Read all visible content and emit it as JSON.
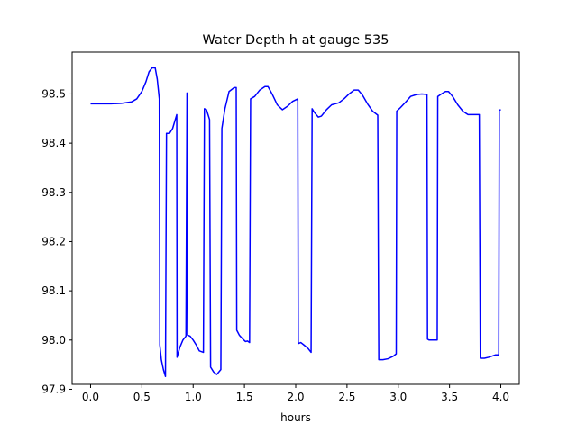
{
  "chart_data": {
    "type": "line",
    "title": "Water Depth h at gauge 535",
    "xlabel": "hours",
    "ylabel": "",
    "xlim": [
      -0.18,
      4.18
    ],
    "ylim": [
      97.91,
      98.585
    ],
    "xticks": [
      0.0,
      0.5,
      1.0,
      1.5,
      2.0,
      2.5,
      3.0,
      3.5,
      4.0
    ],
    "xtick_labels": [
      "0.0",
      "0.5",
      "1.0",
      "1.5",
      "2.0",
      "2.5",
      "3.0",
      "3.5",
      "4.0"
    ],
    "yticks": [
      97.9,
      98.0,
      98.1,
      98.2,
      98.3,
      98.4,
      98.5
    ],
    "ytick_labels": [
      "97.9",
      "98.0",
      "98.1",
      "98.2",
      "98.3",
      "98.4",
      "98.5"
    ],
    "grid": false,
    "series": [
      {
        "color": "#0000ff",
        "points": [
          [
            0.0,
            98.48
          ],
          [
            0.1,
            98.48
          ],
          [
            0.2,
            98.48
          ],
          [
            0.3,
            98.481
          ],
          [
            0.4,
            98.484
          ],
          [
            0.45,
            98.49
          ],
          [
            0.5,
            98.505
          ],
          [
            0.54,
            98.525
          ],
          [
            0.57,
            98.545
          ],
          [
            0.6,
            98.553
          ],
          [
            0.63,
            98.553
          ],
          [
            0.65,
            98.53
          ],
          [
            0.67,
            98.49
          ],
          [
            0.675,
            97.99
          ],
          [
            0.69,
            97.96
          ],
          [
            0.71,
            97.94
          ],
          [
            0.73,
            97.926
          ],
          [
            0.74,
            98.42
          ],
          [
            0.77,
            98.42
          ],
          [
            0.8,
            98.43
          ],
          [
            0.84,
            98.458
          ],
          [
            0.843,
            97.965
          ],
          [
            0.87,
            97.985
          ],
          [
            0.9,
            98.0
          ],
          [
            0.93,
            98.008
          ],
          [
            0.94,
            98.502
          ],
          [
            0.945,
            98.01
          ],
          [
            0.97,
            98.008
          ],
          [
            1.0,
            98.0
          ],
          [
            1.03,
            97.99
          ],
          [
            1.06,
            97.978
          ],
          [
            1.1,
            97.975
          ],
          [
            1.11,
            98.47
          ],
          [
            1.13,
            98.468
          ],
          [
            1.16,
            98.448
          ],
          [
            1.17,
            97.945
          ],
          [
            1.2,
            97.935
          ],
          [
            1.23,
            97.93
          ],
          [
            1.27,
            97.94
          ],
          [
            1.28,
            98.43
          ],
          [
            1.31,
            98.47
          ],
          [
            1.35,
            98.505
          ],
          [
            1.4,
            98.513
          ],
          [
            1.42,
            98.513
          ],
          [
            1.425,
            98.02
          ],
          [
            1.45,
            98.01
          ],
          [
            1.48,
            98.003
          ],
          [
            1.51,
            97.997
          ],
          [
            1.53,
            97.998
          ],
          [
            1.55,
            97.995
          ],
          [
            1.56,
            98.49
          ],
          [
            1.6,
            98.495
          ],
          [
            1.65,
            98.508
          ],
          [
            1.7,
            98.515
          ],
          [
            1.73,
            98.515
          ],
          [
            1.77,
            98.5
          ],
          [
            1.82,
            98.478
          ],
          [
            1.87,
            98.468
          ],
          [
            1.92,
            98.475
          ],
          [
            1.97,
            98.485
          ],
          [
            2.02,
            98.49
          ],
          [
            2.025,
            97.993
          ],
          [
            2.05,
            97.995
          ],
          [
            2.08,
            97.99
          ],
          [
            2.12,
            97.983
          ],
          [
            2.15,
            97.975
          ],
          [
            2.16,
            98.47
          ],
          [
            2.18,
            98.463
          ],
          [
            2.22,
            98.453
          ],
          [
            2.25,
            98.455
          ],
          [
            2.3,
            98.468
          ],
          [
            2.35,
            98.478
          ],
          [
            2.42,
            98.482
          ],
          [
            2.47,
            98.49
          ],
          [
            2.52,
            98.5
          ],
          [
            2.57,
            98.508
          ],
          [
            2.61,
            98.508
          ],
          [
            2.65,
            98.498
          ],
          [
            2.7,
            98.48
          ],
          [
            2.75,
            98.465
          ],
          [
            2.8,
            98.457
          ],
          [
            2.81,
            97.96
          ],
          [
            2.85,
            97.96
          ],
          [
            2.9,
            97.962
          ],
          [
            2.95,
            97.967
          ],
          [
            2.98,
            97.972
          ],
          [
            2.985,
            98.465
          ],
          [
            3.02,
            98.472
          ],
          [
            3.07,
            98.483
          ],
          [
            3.12,
            98.495
          ],
          [
            3.18,
            98.499
          ],
          [
            3.23,
            98.5
          ],
          [
            3.28,
            98.499
          ],
          [
            3.285,
            98.002
          ],
          [
            3.3,
            98.0
          ],
          [
            3.34,
            98.0
          ],
          [
            3.38,
            98.0
          ],
          [
            3.385,
            98.495
          ],
          [
            3.42,
            98.5
          ],
          [
            3.46,
            98.505
          ],
          [
            3.49,
            98.505
          ],
          [
            3.53,
            98.495
          ],
          [
            3.58,
            98.478
          ],
          [
            3.63,
            98.465
          ],
          [
            3.68,
            98.458
          ],
          [
            3.73,
            98.458
          ],
          [
            3.79,
            98.458
          ],
          [
            3.8,
            97.963
          ],
          [
            3.84,
            97.963
          ],
          [
            3.88,
            97.965
          ],
          [
            3.91,
            97.967
          ],
          [
            3.95,
            97.97
          ],
          [
            3.98,
            97.97
          ],
          [
            3.985,
            98.467
          ],
          [
            4.0,
            98.468
          ]
        ]
      }
    ]
  }
}
